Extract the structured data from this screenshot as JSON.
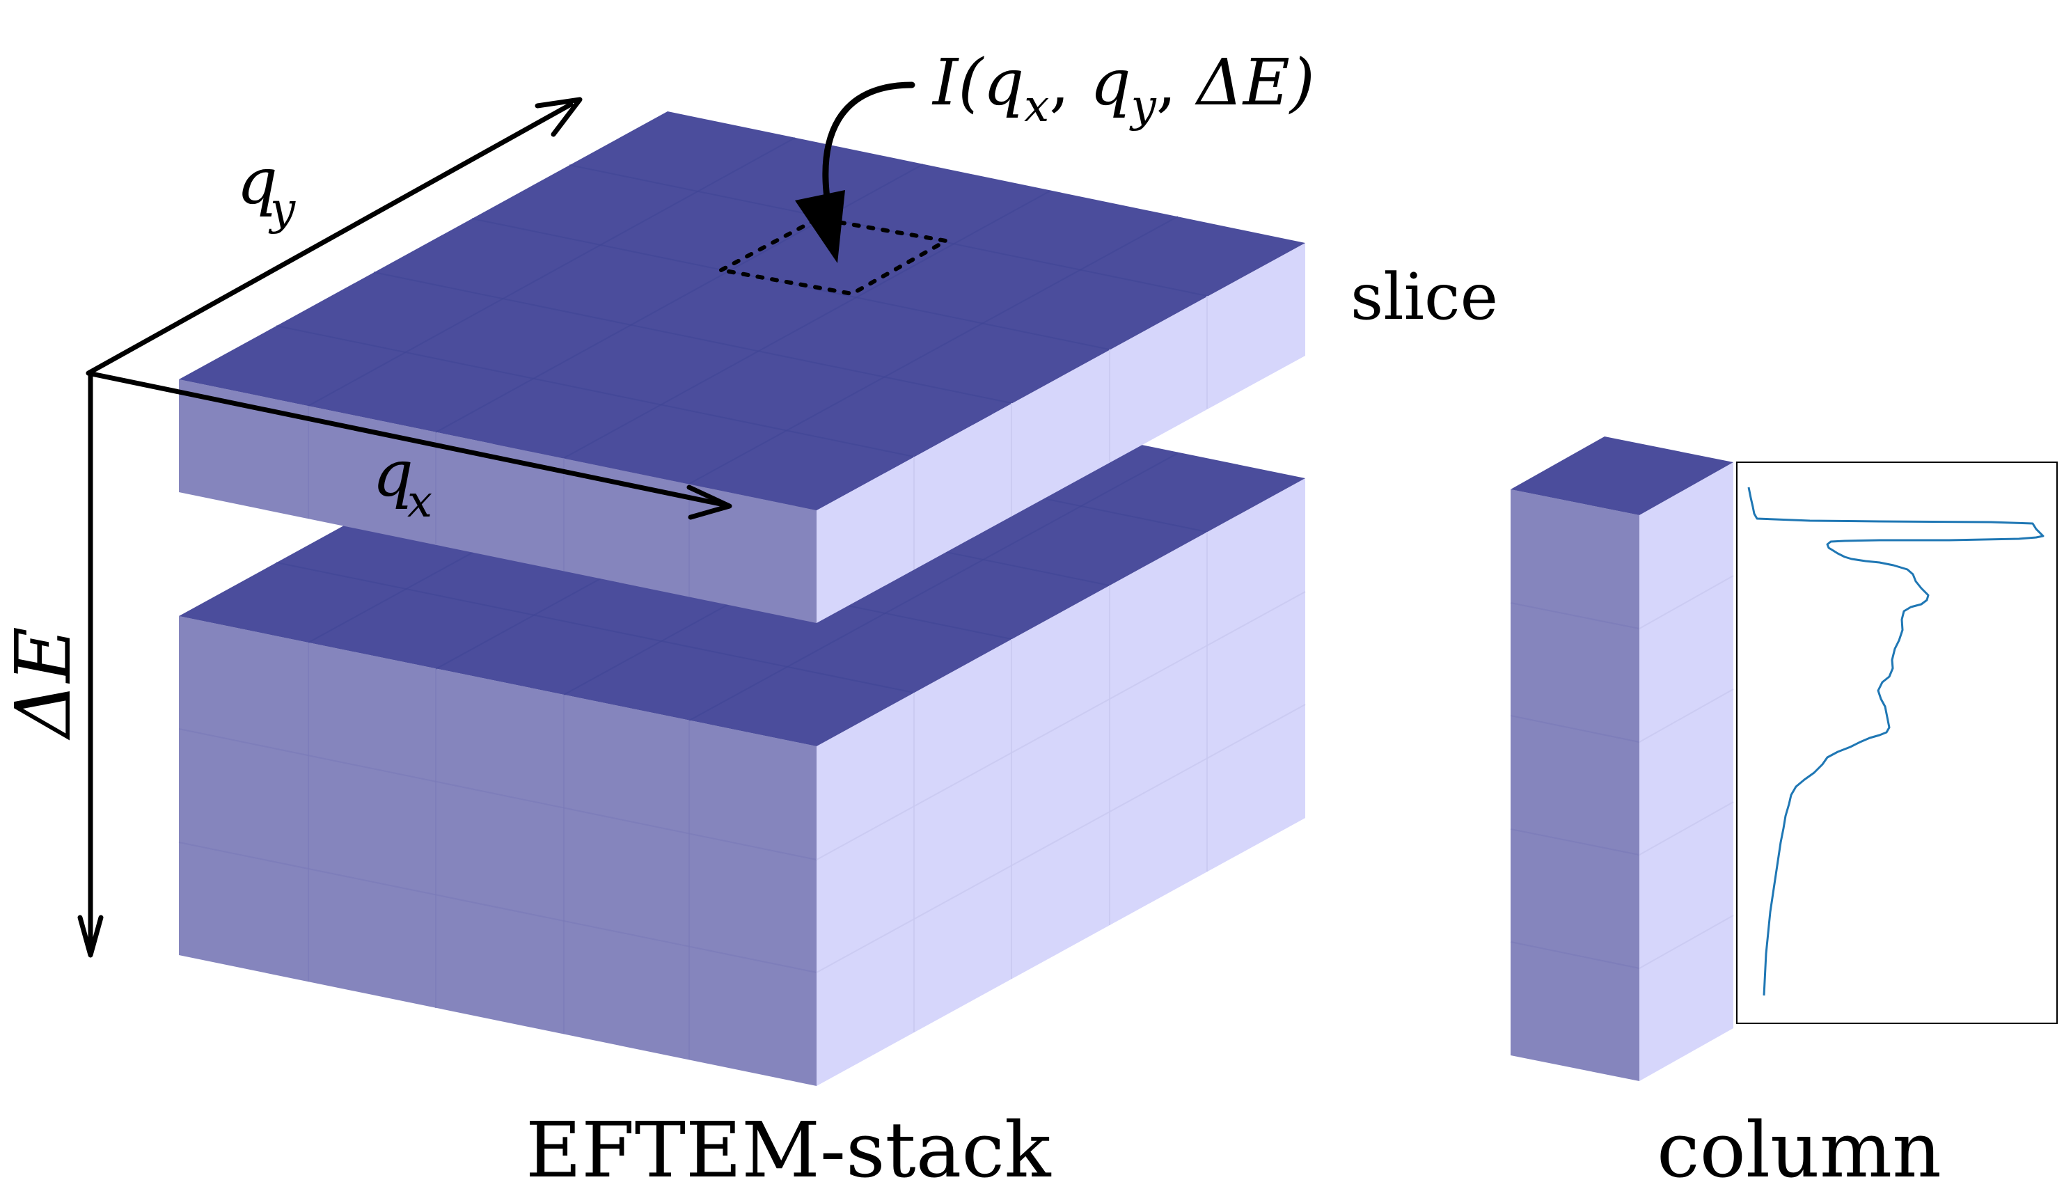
{
  "labels": {
    "axis_qy": "q",
    "axis_qy_sub": "y",
    "axis_qx": "q",
    "axis_qx_sub": "x",
    "axis_dE": "ΔE",
    "intensity_I": "I(",
    "intensity_qx": "q",
    "intensity_qx_sub": "x",
    "intensity_sep1": ", ",
    "intensity_qy": "q",
    "intensity_qy_sub": "y",
    "intensity_sep2": ", ",
    "intensity_dE": "ΔE)",
    "slice": "slice",
    "stack": "EFTEM-stack",
    "column": "column"
  },
  "colors": {
    "top_face": "#4b4d9c",
    "front_face": "#8585bd",
    "side_face": "#d6d6fb",
    "spectrum_line": "#1f77b4",
    "ink": "#000000"
  }
}
